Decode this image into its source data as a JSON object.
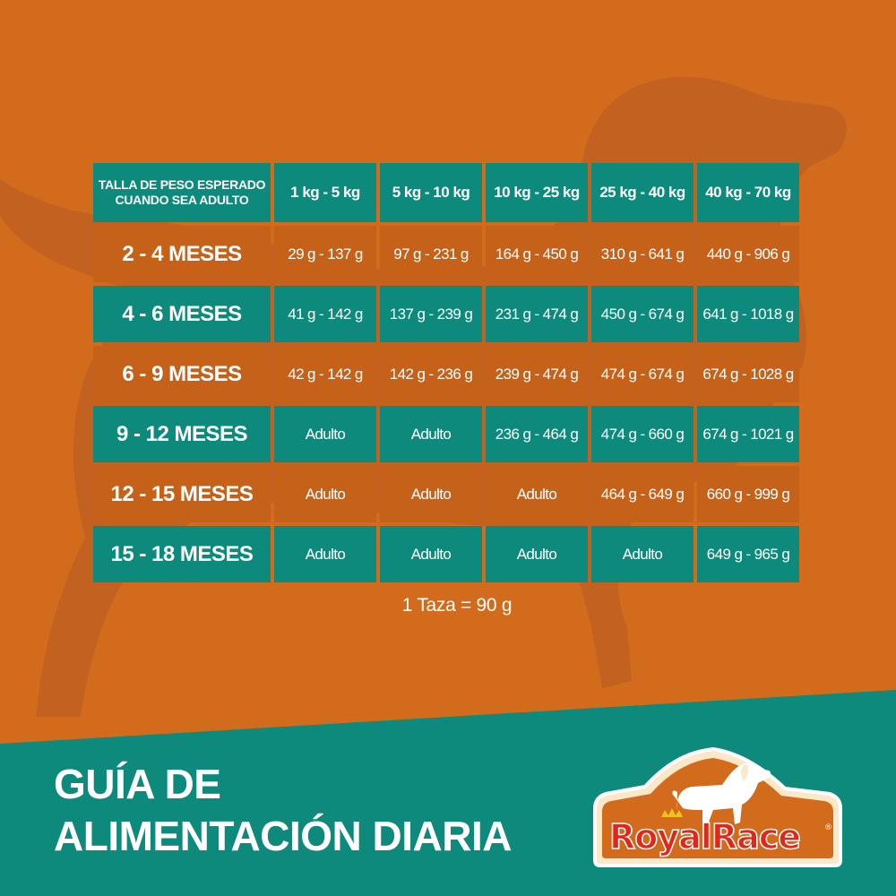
{
  "table": {
    "header": {
      "label_line1": "TALLA DE PESO ESPERADO",
      "label_line2": "CUANDO SEA ADULTO",
      "sizes": [
        "1 kg - 5 kg",
        "5 kg - 10 kg",
        "10 kg - 25 kg",
        "25 kg - 40 kg",
        "40 kg - 70 kg"
      ]
    },
    "rows": [
      {
        "age": "2 - 4 MESES",
        "values": [
          "29 g - 137 g",
          "97 g - 231 g",
          "164 g - 450 g",
          "310 g - 641 g",
          "440 g - 906 g"
        ]
      },
      {
        "age": "4 - 6 MESES",
        "values": [
          "41 g - 142 g",
          "137 g - 239 g",
          "231 g - 474 g",
          "450 g - 674 g",
          "641 g - 1018 g"
        ]
      },
      {
        "age": "6 - 9 MESES",
        "values": [
          "42 g - 142 g",
          "142 g - 236 g",
          "239 g - 474 g",
          "474 g - 674 g",
          "674 g - 1028 g"
        ]
      },
      {
        "age": "9 - 12 MESES",
        "values": [
          "Adulto",
          "Adulto",
          "236 g - 464 g",
          "474 g - 660 g",
          "674 g - 1021 g"
        ]
      },
      {
        "age": "12 - 15 MESES",
        "values": [
          "Adulto",
          "Adulto",
          "Adulto",
          "464 g - 649 g",
          "660 g - 999 g"
        ]
      },
      {
        "age": "15 - 18 MESES",
        "values": [
          "Adulto",
          "Adulto",
          "Adulto",
          "Adulto",
          "649 g - 965 g"
        ]
      }
    ]
  },
  "note": "1 Taza  = 90 g",
  "title": {
    "line1": "GUÍA DE",
    "line2": "ALIMENTACIÓN DIARIA"
  },
  "logo": {
    "text_part1": "Royal",
    "text_part2": "Race",
    "registered": "®"
  },
  "colors": {
    "orange": "#d36b1d",
    "orange_dark": "#c56119",
    "teal": "#0d8a7b",
    "brand_red": "#e2261c"
  }
}
